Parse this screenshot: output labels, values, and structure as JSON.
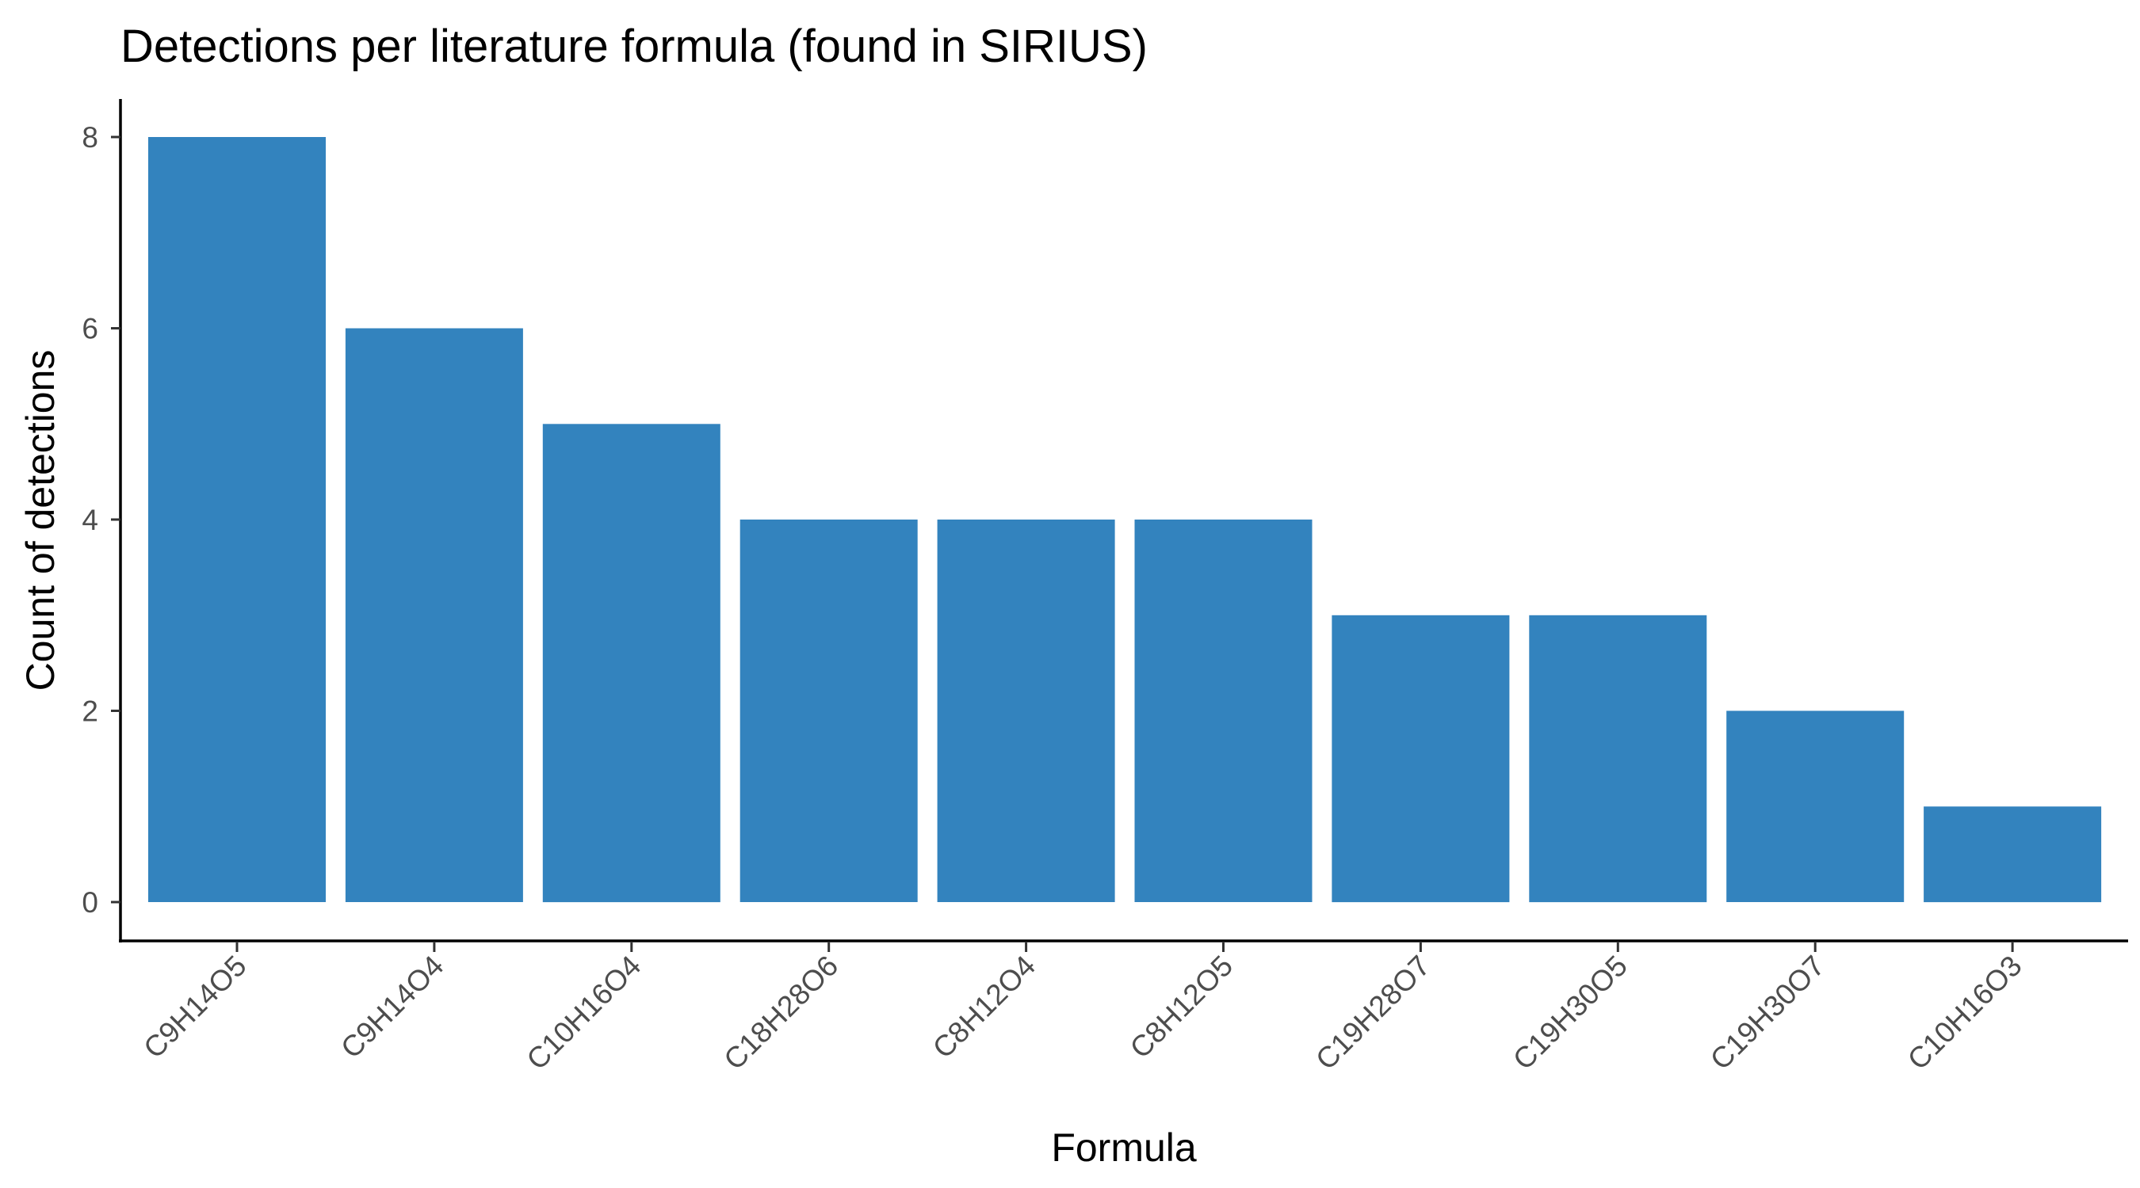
{
  "chart_data": {
    "type": "bar",
    "title": "Detections per literature formula (found in SIRIUS)",
    "xlabel": "Formula",
    "ylabel": "Count of detections",
    "categories": [
      "C9H14O5",
      "C9H14O4",
      "C10H16O4",
      "C18H28O6",
      "C8H12O4",
      "C8H12O5",
      "C19H28O7",
      "C19H30O5",
      "C19H30O7",
      "C10H16O3"
    ],
    "values": [
      8,
      6,
      5,
      4,
      4,
      4,
      3,
      3,
      2,
      1
    ],
    "yticks": [
      0,
      2,
      4,
      6,
      8
    ],
    "ylim": [
      0,
      8
    ],
    "bar_color": "#3383BE",
    "grid": false,
    "legend": "none"
  }
}
